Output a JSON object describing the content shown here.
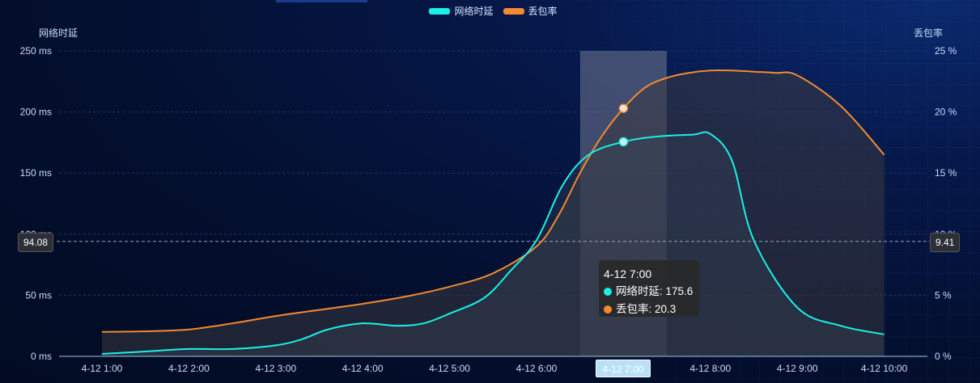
{
  "chart_data": {
    "type": "line",
    "categories": [
      "4-12 1:00",
      "4-12 2:00",
      "4-12 3:00",
      "4-12 4:00",
      "4-12 5:00",
      "4-12 6:00",
      "4-12 7:00",
      "4-12 8:00",
      "4-12 9:00",
      "4-12 10:00"
    ],
    "series": [
      {
        "name": "网络时延",
        "color": "#19f0e6",
        "x": [
          1,
          1.5,
          2,
          2.5,
          3,
          3.3,
          3.6,
          4,
          4.4,
          4.7,
          5,
          5.4,
          5.7,
          6,
          6.3,
          6.6,
          7,
          7.4,
          7.8,
          8,
          8.25,
          8.5,
          9,
          9.5,
          10
        ],
        "values": [
          2,
          4,
          6,
          6,
          9,
          14,
          22,
          27,
          25,
          27,
          35,
          48,
          70,
          95,
          140,
          165,
          175.6,
          180,
          181.5,
          182,
          160,
          95,
          40,
          25,
          18
        ]
      },
      {
        "name": "丢包率",
        "color": "#f28a31",
        "x": [
          1,
          1.5,
          2,
          2.5,
          3,
          3.5,
          4,
          4.5,
          5,
          5.5,
          6,
          6.25,
          6.5,
          6.75,
          7,
          7.25,
          7.5,
          7.75,
          8,
          8.25,
          8.5,
          8.75,
          9,
          9.5,
          10
        ],
        "values": [
          2.0,
          2.05,
          2.2,
          2.7,
          3.3,
          3.8,
          4.3,
          4.9,
          5.7,
          6.8,
          9.0,
          11.5,
          15.0,
          18.0,
          20.3,
          22.0,
          22.8,
          23.2,
          23.4,
          23.4,
          23.3,
          23.2,
          23.0,
          20.5,
          16.5
        ]
      }
    ],
    "yAxisLeft": {
      "name": "网络时延",
      "min": 0,
      "max": 250,
      "ticks": [
        "0 ms",
        "50 ms",
        "100 ms",
        "150 ms",
        "200 ms",
        "250 ms"
      ]
    },
    "yAxisRight": {
      "name": "丢包率",
      "min": 0,
      "max": 25,
      "ticks": [
        "0 %",
        "5 %",
        "10 %",
        "15 %",
        "20 %",
        "25 %"
      ]
    },
    "highlight_index": 6,
    "crosshair": {
      "left": "94.08",
      "right": "9.41"
    },
    "tooltip": {
      "title": "4-12 7:00",
      "rows": [
        {
          "label": "网络时延: 175.6",
          "color": "#19f0e6"
        },
        {
          "label": "丢包率: 20.3",
          "color": "#f28a31"
        }
      ]
    },
    "legend_position": "top-center",
    "grid": true
  }
}
